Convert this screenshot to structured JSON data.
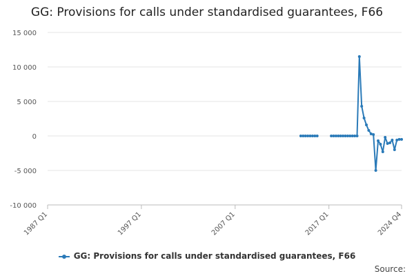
{
  "chart_data": {
    "type": "line",
    "title": "GG: Provisions for calls under standardised guarantees, F66",
    "xlabel": "",
    "ylabel": "",
    "ylim": [
      -10000,
      15000
    ],
    "yticks": [
      15000,
      10000,
      5000,
      0,
      -5000,
      -10000
    ],
    "ytick_labels": [
      "15 000",
      "10 000",
      "5 000",
      "0",
      "-5 000",
      "-10 000"
    ],
    "x_start": "1987 Q1",
    "x_end": "2024 Q4",
    "xtick_labels": [
      "1987 Q1",
      "1997 Q1",
      "2007 Q1",
      "2017 Q1",
      "2024 Q4"
    ],
    "grid": "horizontal",
    "legend_position": "bottom",
    "series": [
      {
        "name": "GG: Provisions for calls under standardised guarantees, F66",
        "color": "#2a7ab8",
        "points": [
          [
            "2014 Q1",
            0
          ],
          [
            "2014 Q2",
            0
          ],
          [
            "2014 Q3",
            0
          ],
          [
            "2014 Q4",
            0
          ],
          [
            "2015 Q1",
            0
          ],
          [
            "2015 Q2",
            0
          ],
          [
            "2015 Q3",
            0
          ],
          [
            "2015 Q4",
            0
          ],
          [
            "2017 Q2",
            0
          ],
          [
            "2017 Q3",
            0
          ],
          [
            "2017 Q4",
            0
          ],
          [
            "2018 Q1",
            0
          ],
          [
            "2018 Q2",
            0
          ],
          [
            "2018 Q3",
            0
          ],
          [
            "2018 Q4",
            0
          ],
          [
            "2019 Q1",
            0
          ],
          [
            "2019 Q2",
            0
          ],
          [
            "2019 Q3",
            0
          ],
          [
            "2019 Q4",
            0
          ],
          [
            "2020 Q1",
            0
          ],
          [
            "2020 Q2",
            11500
          ],
          [
            "2020 Q3",
            4300
          ],
          [
            "2020 Q4",
            2600
          ],
          [
            "2021 Q1",
            1600
          ],
          [
            "2021 Q2",
            800
          ],
          [
            "2021 Q3",
            300
          ],
          [
            "2021 Q4",
            200
          ],
          [
            "2022 Q1",
            -5000
          ],
          [
            "2022 Q2",
            -700
          ],
          [
            "2022 Q3",
            -1200
          ],
          [
            "2022 Q4",
            -2300
          ],
          [
            "2023 Q1",
            -200
          ],
          [
            "2023 Q2",
            -1100
          ],
          [
            "2023 Q3",
            -1000
          ],
          [
            "2023 Q4",
            -600
          ],
          [
            "2024 Q1",
            -2000
          ],
          [
            "2024 Q2",
            -600
          ],
          [
            "2024 Q3",
            -500
          ],
          [
            "2024 Q4",
            -500
          ]
        ]
      }
    ]
  },
  "legend": {
    "label": "GG: Provisions for calls under standardised guarantees, F66"
  },
  "source_label": "Source:"
}
